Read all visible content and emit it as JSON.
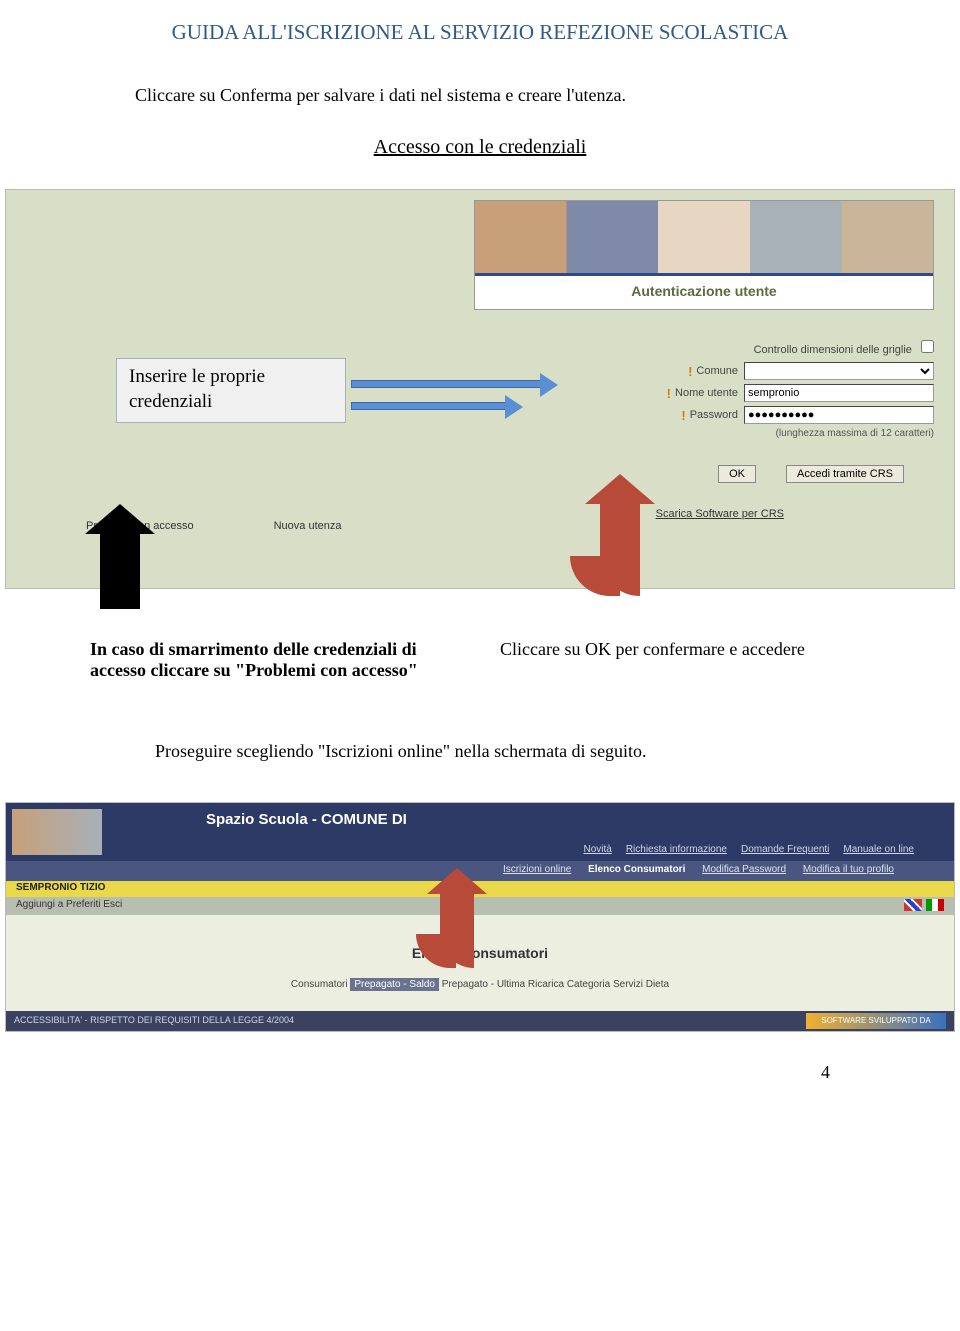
{
  "header": {
    "title": "GUIDA ALL'ISCRIZIONE AL SERVIZIO REFEZIONE SCOLASTICA",
    "title_color": "#2e5b8a"
  },
  "intro_text": "Cliccare su Conferma per salvare i dati nel sistema e creare l'utenza.",
  "section_title": "Accesso con le credenziali",
  "screenshot1": {
    "banner_auth": "Autenticazione utente",
    "grid_label": "Controllo dimensioni delle griglie",
    "comune_label": "Comune",
    "comune_value": "",
    "user_label": "Nome utente",
    "user_value": "sempronio",
    "pass_label": "Password",
    "pass_value": "●●●●●●●●●●",
    "pass_note": "(lunghezza massima di 12 caratteri)",
    "ok_btn": "OK",
    "crs_btn": "Accedi tramite CRS",
    "crs_link": "Scarica Software per CRS",
    "link_problemi": "Problemi con accesso",
    "link_nuova": "Nuova utenza",
    "callout": "Inserire le proprie credenziali"
  },
  "annot": {
    "left": "In caso di smarrimento delle credenziali di accesso cliccare su \"Problemi con accesso\"",
    "right": "Cliccare su OK per confermare e accedere"
  },
  "proseguire": "Proseguire scegliendo \"Iscrizioni online\" nella schermata di seguito.",
  "screenshot2": {
    "spazio": "Spazio Scuola - COMUNE DI",
    "toplinks": [
      "Novità",
      "Richiesta informazione",
      "Domande Frequenti",
      "Manuale on line"
    ],
    "midlinks": [
      "Iscrizioni online",
      "Elenco Consumatori",
      "Modifica Password",
      "Modifica il tuo profilo"
    ],
    "user_name": "SEMPRONIO TIZIO",
    "gray_links": "Aggiungi a Preferiti   Esci",
    "center_title": "Elenco Consumatori",
    "tabs": "Consumatori Prepagato - Saldo Prepagato - Ultima Ricarica Categoria Servizi Dieta",
    "tabs_active": "Prepagato - Saldo",
    "footer": "ACCESSIBILITA' - RISPETTO DEI REQUISITI DELLA LEGGE 4/2004",
    "badge": "SOFTWARE SVILUPPATO DA"
  },
  "page_number": "4"
}
